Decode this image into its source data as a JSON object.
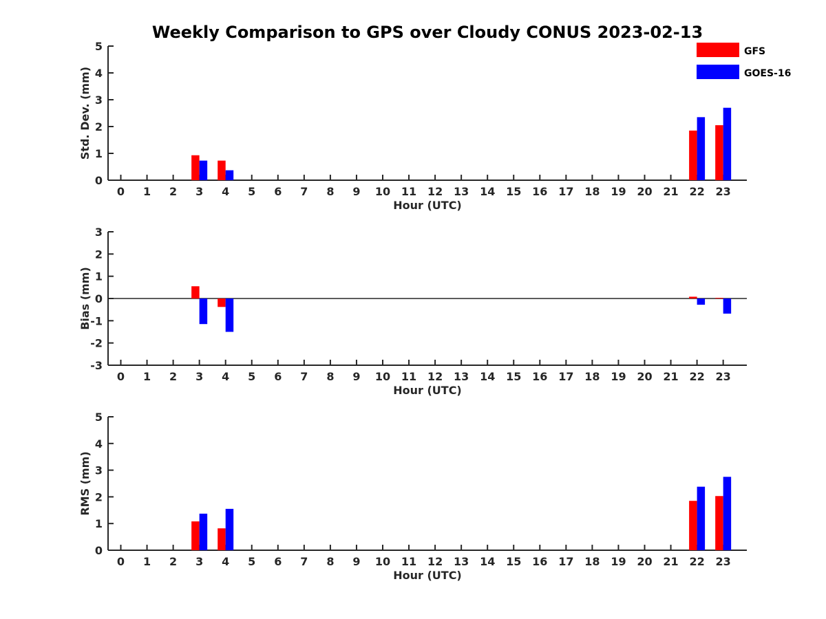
{
  "figure": {
    "title": "Weekly Comparison to GPS over Cloudy CONUS 2023-02-13",
    "legend": [
      {
        "label": "GFS",
        "color": "#ff0000"
      },
      {
        "label": "GOES-16",
        "color": "#0000ff"
      }
    ]
  },
  "chart_data": [
    {
      "type": "bar",
      "xlabel": "Hour (UTC)",
      "ylabel": "Std. Dev. (mm)",
      "ylim": [
        0,
        5
      ],
      "yticks": [
        0,
        1,
        2,
        3,
        4,
        5
      ],
      "categories": [
        "0",
        "1",
        "2",
        "3",
        "4",
        "5",
        "6",
        "7",
        "8",
        "9",
        "10",
        "11",
        "12",
        "13",
        "14",
        "15",
        "16",
        "17",
        "18",
        "19",
        "20",
        "21",
        "22",
        "23"
      ],
      "series": [
        {
          "name": "GFS",
          "color": "#ff0000",
          "values": [
            null,
            null,
            null,
            0.93,
            0.73,
            null,
            null,
            null,
            null,
            null,
            null,
            null,
            null,
            null,
            null,
            null,
            null,
            null,
            null,
            null,
            null,
            null,
            1.85,
            2.05
          ]
        },
        {
          "name": "GOES-16",
          "color": "#0000ff",
          "values": [
            null,
            null,
            null,
            0.73,
            0.37,
            null,
            null,
            null,
            null,
            null,
            null,
            null,
            null,
            null,
            null,
            null,
            null,
            null,
            null,
            null,
            null,
            null,
            2.35,
            2.7
          ]
        }
      ],
      "zero_line": false
    },
    {
      "type": "bar",
      "xlabel": "Hour (UTC)",
      "ylabel": "Bias (mm)",
      "ylim": [
        -3,
        3
      ],
      "yticks": [
        -3,
        -2,
        -1,
        0,
        1,
        2,
        3
      ],
      "categories": [
        "0",
        "1",
        "2",
        "3",
        "4",
        "5",
        "6",
        "7",
        "8",
        "9",
        "10",
        "11",
        "12",
        "13",
        "14",
        "15",
        "16",
        "17",
        "18",
        "19",
        "20",
        "21",
        "22",
        "23"
      ],
      "series": [
        {
          "name": "GFS",
          "color": "#ff0000",
          "values": [
            null,
            null,
            null,
            0.55,
            -0.38,
            null,
            null,
            null,
            null,
            null,
            null,
            null,
            null,
            null,
            null,
            null,
            null,
            null,
            null,
            null,
            null,
            null,
            0.08,
            0.03
          ]
        },
        {
          "name": "GOES-16",
          "color": "#0000ff",
          "values": [
            null,
            null,
            null,
            -1.15,
            -1.5,
            null,
            null,
            null,
            null,
            null,
            null,
            null,
            null,
            null,
            null,
            null,
            null,
            null,
            null,
            null,
            null,
            null,
            -0.28,
            -0.68
          ]
        }
      ],
      "zero_line": true
    },
    {
      "type": "bar",
      "xlabel": "Hour (UTC)",
      "ylabel": "RMS (mm)",
      "ylim": [
        0,
        5
      ],
      "yticks": [
        0,
        1,
        2,
        3,
        4,
        5
      ],
      "categories": [
        "0",
        "1",
        "2",
        "3",
        "4",
        "5",
        "6",
        "7",
        "8",
        "9",
        "10",
        "11",
        "12",
        "13",
        "14",
        "15",
        "16",
        "17",
        "18",
        "19",
        "20",
        "21",
        "22",
        "23"
      ],
      "series": [
        {
          "name": "GFS",
          "color": "#ff0000",
          "values": [
            null,
            null,
            null,
            1.08,
            0.82,
            null,
            null,
            null,
            null,
            null,
            null,
            null,
            null,
            null,
            null,
            null,
            null,
            null,
            null,
            null,
            null,
            null,
            1.85,
            2.03
          ]
        },
        {
          "name": "GOES-16",
          "color": "#0000ff",
          "values": [
            null,
            null,
            null,
            1.37,
            1.55,
            null,
            null,
            null,
            null,
            null,
            null,
            null,
            null,
            null,
            null,
            null,
            null,
            null,
            null,
            null,
            null,
            null,
            2.38,
            2.75
          ]
        }
      ],
      "zero_line": false
    }
  ]
}
